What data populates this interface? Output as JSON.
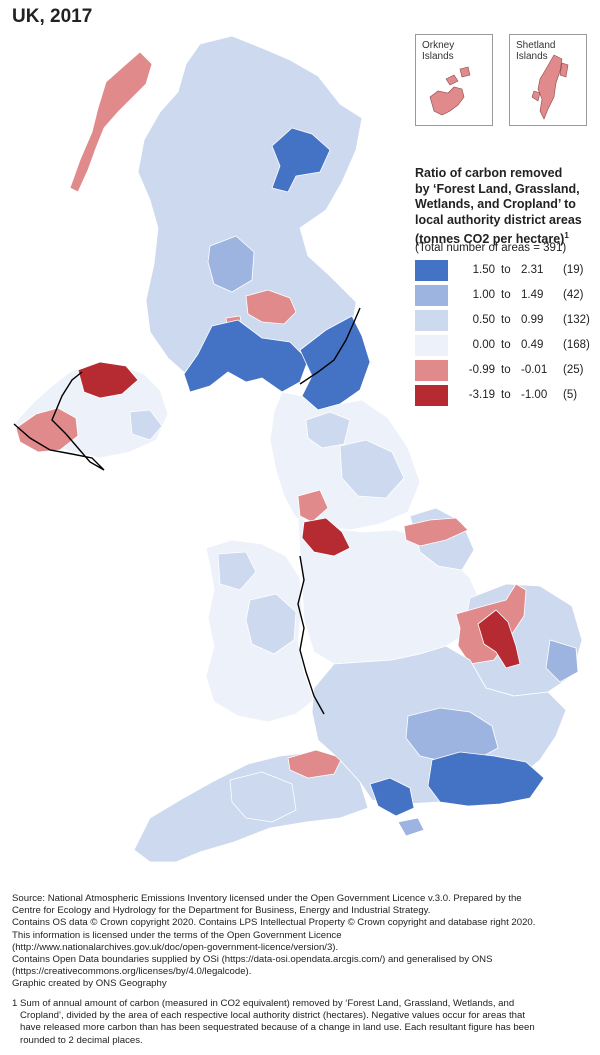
{
  "title": "UK, 2017",
  "insets": [
    {
      "label_line1": "Orkney",
      "label_line2": "Islands"
    },
    {
      "label_line1": "Shetland",
      "label_line2": "Islands"
    }
  ],
  "legend": {
    "title_line1": "Ratio of carbon removed",
    "title_line2": "by ‘Forest Land, Grassland,",
    "title_line3": "Wetlands, and Cropland’ to",
    "title_line4": "local authority district areas",
    "title_line5": "(tonnes CO2 per hectare)",
    "title_sup": "1",
    "subtitle": "(Total number of areas = 391)",
    "classes": [
      {
        "low": "1.50",
        "high": "2.31",
        "count": "(19)",
        "color": "#4472c4"
      },
      {
        "low": "1.00",
        "high": "1.49",
        "count": "(42)",
        "color": "#9db3e0"
      },
      {
        "low": "0.50",
        "high": "0.99",
        "count": "(132)",
        "color": "#cdd9ef"
      },
      {
        "low": "0.00",
        "high": "0.49",
        "count": "(168)",
        "color": "#edf1f9"
      },
      {
        "low": "-0.99",
        "high": "-0.01",
        "count": "(25)",
        "color": "#e08a8c"
      },
      {
        "low": "-3.19",
        "high": "-1.00",
        "count": "(5)",
        "color": "#b52b31"
      }
    ],
    "to_word": "to"
  },
  "source_lines": [
    "Source: National Atmospheric Emissions Inventory licensed under the Open Government Licence v.3.0. Prepared by the",
    "Centre for Ecology and Hydrology for the Department for Business, Energy and Industrial Strategy.",
    "Contains OS data © Crown copyright 2020. Contains LPS Intellectual Property © Crown copyright and database right 2020.",
    "This information is licensed under the terms of the Open Government Licence",
    "(http://www.nationalarchives.gov.uk/doc/open-government-licence/version/3).",
    "Contains Open Data boundaries supplied by OSi (https://data-osi.opendata.arcgis.com/) and generalised by ONS",
    "(https://creativecommons.org/licenses/by/4.0/legalcode).",
    "Graphic created by ONS Geography"
  ],
  "footnote_lines": [
    "1 Sum of annual amount of carbon (measured in CO2 equivalent) removed by ‘Forest Land, Grassland, Wetlands, and",
    "   Cropland’, divided by the area of each respective local authority district (hectares). Negative values occur for areas that",
    "   have released more carbon than has been sequestrated because of a change in land use. Each resultant figure has been",
    "   rounded to 2 decimal places."
  ]
}
